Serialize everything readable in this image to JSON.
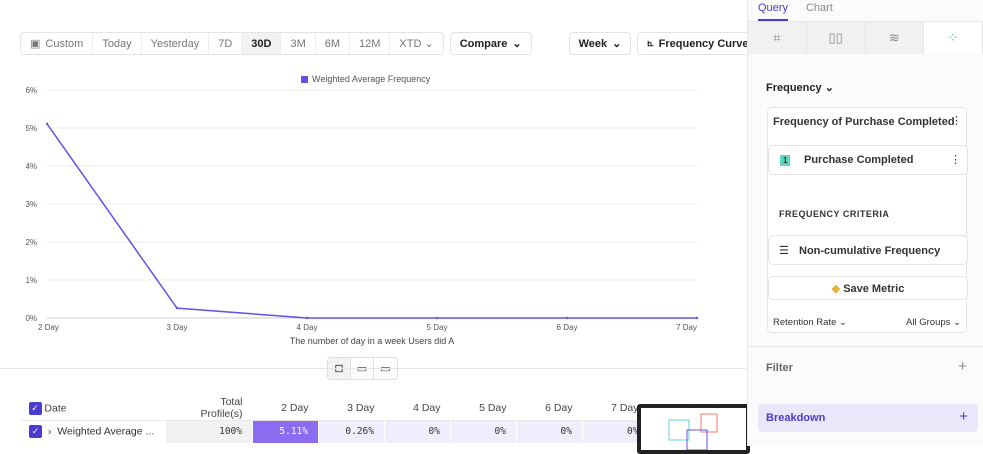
{
  "toolbar": {
    "date_ranges": [
      "Custom",
      "Today",
      "Yesterday",
      "7D",
      "30D",
      "3M",
      "6M",
      "12M",
      "XTD"
    ],
    "active": "30D",
    "compare": "Compare",
    "interval": "Week",
    "chart_type": "Frequency Curve"
  },
  "chart_data": {
    "type": "line",
    "legend": "Weighted Average Frequency",
    "xlabel": "The number of day in a week Users did A",
    "categories": [
      "2 Day",
      "3 Day",
      "4 Day",
      "5 Day",
      "6 Day",
      "7 Day"
    ],
    "series": [
      {
        "name": "Weighted Average Frequency",
        "values": [
          5.11,
          0.26,
          0,
          0,
          0,
          0
        ]
      }
    ],
    "yticks": [
      "0%",
      "1%",
      "2%",
      "3%",
      "4%",
      "5%",
      "6%"
    ],
    "ylim": [
      0,
      6
    ],
    "color": "#6b4de6",
    "grid": true
  },
  "table": {
    "headers": [
      "Date",
      "Total Profile(s)",
      "2 Day",
      "3 Day",
      "4 Day",
      "5 Day",
      "6 Day",
      "7 Day"
    ],
    "row": {
      "label": "Weighted Average ...",
      "values": [
        "100%",
        "5.11%",
        "0.26%",
        "0%",
        "0%",
        "0%",
        "0%"
      ]
    }
  },
  "panel": {
    "tabs": [
      "Query",
      "Chart"
    ],
    "metric_type": "Frequency",
    "card_title": "Frequency of Purchase Completed",
    "event_index": "1",
    "event": "Purchase Completed",
    "criteria_label": "FREQUENCY CRITERIA",
    "criteria": "Non-cumulative Frequency",
    "save": "Save Metric",
    "retention": "Retention Rate",
    "groups": "All Groups",
    "filter": "Filter",
    "breakdown": "Breakdown"
  }
}
